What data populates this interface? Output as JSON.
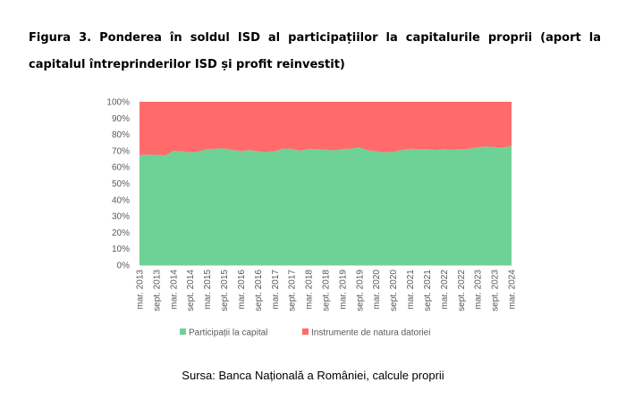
{
  "figure": {
    "title": "Figura 3. Ponderea în soldul ISD al participațiilor la capitalurile proprii (aport la capitalul întreprinderilor ISD și profit reinvestit)",
    "source": "Sursa: Banca Națională a României, calcule proprii"
  },
  "chart_data": {
    "type": "area",
    "stacked": true,
    "percent": true,
    "xlabel": "",
    "ylabel": "",
    "ylim": [
      0,
      100
    ],
    "y_ticks": [
      "0%",
      "10%",
      "20%",
      "30%",
      "40%",
      "50%",
      "60%",
      "70%",
      "80%",
      "90%",
      "100%"
    ],
    "x_tick_labels": [
      "mar. 2013",
      "sept. 2013",
      "mar. 2014",
      "sept. 2014",
      "mar. 2015",
      "sept. 2015",
      "mar. 2016",
      "sept. 2016",
      "mar. 2017",
      "sept. 2017",
      "mar. 2018",
      "sept. 2018",
      "mar. 2019",
      "sept. 2019",
      "mar. 2020",
      "sept. 2020",
      "mar. 2021",
      "sept. 2021",
      "mar. 2022",
      "sept. 2022",
      "mar. 2023",
      "sept. 2023",
      "mar. 2024"
    ],
    "x": [
      "mar. 2013",
      "iun. 2013",
      "sept. 2013",
      "dec. 2013",
      "mar. 2014",
      "iun. 2014",
      "sept. 2014",
      "dec. 2014",
      "mar. 2015",
      "iun. 2015",
      "sept. 2015",
      "dec. 2015",
      "mar. 2016",
      "iun. 2016",
      "sept. 2016",
      "dec. 2016",
      "mar. 2017",
      "iun. 2017",
      "sept. 2017",
      "dec. 2017",
      "mar. 2018",
      "iun. 2018",
      "sept. 2018",
      "dec. 2018",
      "mar. 2019",
      "iun. 2019",
      "sept. 2019",
      "dec. 2019",
      "mar. 2020",
      "iun. 2020",
      "sept. 2020",
      "dec. 2020",
      "mar. 2021",
      "iun. 2021",
      "sept. 2021",
      "dec. 2021",
      "mar. 2022",
      "iun. 2022",
      "sept. 2022",
      "dec. 2022",
      "mar. 2023",
      "iun. 2023",
      "sept. 2023",
      "dec. 2023",
      "mar. 2024"
    ],
    "series": [
      {
        "name": "Participații la capital",
        "color": "#6ed196",
        "values": [
          67.3,
          67.6,
          67.5,
          67.2,
          69.8,
          69.7,
          69.0,
          69.5,
          71.0,
          71.3,
          71.4,
          70.5,
          69.8,
          70.4,
          69.5,
          69.3,
          69.7,
          71.4,
          71.2,
          70.0,
          71.2,
          71.0,
          70.6,
          70.2,
          71.0,
          71.3,
          72.0,
          70.4,
          69.6,
          69.0,
          69.3,
          70.4,
          71.2,
          71.0,
          71.0,
          70.4,
          70.9,
          70.6,
          71.0,
          71.2,
          72.1,
          72.6,
          72.2,
          72.0,
          73.0
        ]
      },
      {
        "name": "Instrumente de natura datoriei",
        "color": "#ff6b6b",
        "values": [
          32.7,
          32.4,
          32.5,
          32.8,
          30.2,
          30.3,
          31.0,
          30.5,
          29.0,
          28.7,
          28.6,
          29.5,
          30.2,
          29.6,
          30.5,
          30.7,
          30.3,
          28.6,
          28.8,
          30.0,
          28.8,
          29.0,
          29.4,
          29.8,
          29.0,
          28.7,
          28.0,
          29.6,
          30.4,
          31.0,
          30.7,
          29.6,
          28.8,
          29.0,
          29.0,
          29.6,
          29.1,
          29.4,
          29.0,
          28.8,
          27.9,
          27.4,
          27.8,
          28.0,
          27.0
        ]
      }
    ],
    "legend_position": "bottom",
    "grid": false
  }
}
